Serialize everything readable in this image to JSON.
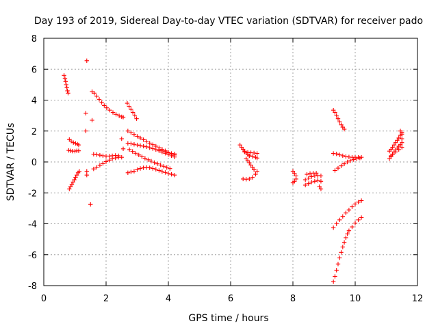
{
  "chart_data": {
    "type": "scatter",
    "title": "Day 193 of 2019, Sidereal Day-to-day VTEC variation (SDTVAR) for receiver pado",
    "xlabel": "GPS time / hours",
    "ylabel": "SDTVAR / TECUs",
    "xlim": [
      0,
      12
    ],
    "ylim": [
      -8,
      8
    ],
    "x_ticks": [
      0,
      2,
      4,
      6,
      8,
      10,
      12
    ],
    "y_ticks": [
      -8,
      -6,
      -4,
      -2,
      0,
      2,
      4,
      6,
      8
    ],
    "x_tick_labels": [
      "0",
      "2",
      "4",
      "6",
      "8",
      "10",
      "12"
    ],
    "y_tick_labels": [
      "-8",
      "-6",
      "-4",
      "-2",
      "0",
      "2",
      "4",
      "6",
      "8"
    ],
    "grid": true,
    "marker": "plus",
    "marker_color": "#ff0000",
    "points": [
      [
        0.65,
        5.6
      ],
      [
        0.68,
        5.4
      ],
      [
        0.7,
        5.2
      ],
      [
        0.72,
        5.0
      ],
      [
        0.74,
        4.8
      ],
      [
        0.76,
        4.6
      ],
      [
        0.78,
        4.45
      ],
      [
        1.38,
        6.55
      ],
      [
        1.35,
        3.15
      ],
      [
        1.35,
        2.0
      ],
      [
        1.55,
        2.7
      ],
      [
        1.5,
        -2.75
      ],
      [
        1.38,
        -0.85
      ],
      [
        1.38,
        -0.6
      ],
      [
        2.5,
        1.5
      ],
      [
        2.55,
        0.85
      ],
      [
        2.55,
        2.9
      ],
      [
        0.82,
        1.45
      ],
      [
        0.88,
        1.35
      ],
      [
        0.95,
        1.25
      ],
      [
        1.02,
        1.2
      ],
      [
        1.08,
        1.15
      ],
      [
        1.12,
        1.1
      ],
      [
        0.8,
        0.75
      ],
      [
        0.86,
        0.72
      ],
      [
        0.92,
        0.7
      ],
      [
        1.0,
        0.7
      ],
      [
        1.06,
        0.72
      ],
      [
        1.12,
        0.72
      ],
      [
        0.82,
        -1.75
      ],
      [
        0.86,
        -1.6
      ],
      [
        0.9,
        -1.45
      ],
      [
        0.94,
        -1.3
      ],
      [
        0.98,
        -1.15
      ],
      [
        1.02,
        -1.0
      ],
      [
        1.06,
        -0.85
      ],
      [
        1.1,
        -0.7
      ],
      [
        1.14,
        -0.6
      ],
      [
        1.55,
        4.55
      ],
      [
        1.62,
        4.45
      ],
      [
        1.7,
        4.25
      ],
      [
        1.78,
        4.05
      ],
      [
        1.86,
        3.85
      ],
      [
        1.94,
        3.65
      ],
      [
        2.02,
        3.5
      ],
      [
        2.12,
        3.35
      ],
      [
        2.22,
        3.2
      ],
      [
        2.32,
        3.08
      ],
      [
        2.42,
        2.98
      ],
      [
        2.5,
        2.92
      ],
      [
        1.6,
        0.5
      ],
      [
        1.7,
        0.48
      ],
      [
        1.8,
        0.44
      ],
      [
        1.9,
        0.4
      ],
      [
        2.0,
        0.38
      ],
      [
        2.1,
        0.38
      ],
      [
        2.2,
        0.4
      ],
      [
        2.3,
        0.42
      ],
      [
        2.4,
        0.4
      ],
      [
        1.6,
        -0.45
      ],
      [
        1.7,
        -0.35
      ],
      [
        1.8,
        -0.22
      ],
      [
        1.9,
        -0.1
      ],
      [
        2.0,
        0.02
      ],
      [
        2.1,
        0.12
      ],
      [
        2.2,
        0.2
      ],
      [
        2.3,
        0.26
      ],
      [
        2.4,
        0.3
      ],
      [
        2.5,
        0.3
      ],
      [
        2.68,
        3.8
      ],
      [
        2.74,
        3.6
      ],
      [
        2.8,
        3.4
      ],
      [
        2.86,
        3.2
      ],
      [
        2.92,
        3.0
      ],
      [
        2.98,
        2.8
      ],
      [
        2.7,
        2.0
      ],
      [
        2.8,
        1.9
      ],
      [
        2.9,
        1.78
      ],
      [
        3.0,
        1.66
      ],
      [
        3.1,
        1.55
      ],
      [
        3.2,
        1.44
      ],
      [
        3.3,
        1.33
      ],
      [
        3.4,
        1.22
      ],
      [
        3.5,
        1.12
      ],
      [
        3.6,
        1.02
      ],
      [
        3.7,
        0.92
      ],
      [
        3.8,
        0.82
      ],
      [
        3.9,
        0.72
      ],
      [
        4.0,
        0.62
      ],
      [
        4.1,
        0.52
      ],
      [
        4.2,
        0.45
      ],
      [
        2.7,
        1.2
      ],
      [
        2.8,
        1.18
      ],
      [
        2.9,
        1.14
      ],
      [
        3.0,
        1.1
      ],
      [
        3.1,
        1.06
      ],
      [
        3.2,
        1.02
      ],
      [
        3.3,
        0.98
      ],
      [
        3.4,
        0.92
      ],
      [
        3.5,
        0.86
      ],
      [
        3.6,
        0.8
      ],
      [
        3.7,
        0.72
      ],
      [
        3.8,
        0.64
      ],
      [
        3.9,
        0.56
      ],
      [
        4.0,
        0.48
      ],
      [
        4.1,
        0.4
      ],
      [
        4.2,
        0.32
      ],
      [
        2.75,
        0.8
      ],
      [
        2.85,
        0.68
      ],
      [
        2.95,
        0.56
      ],
      [
        3.05,
        0.45
      ],
      [
        3.15,
        0.34
      ],
      [
        3.25,
        0.24
      ],
      [
        3.35,
        0.14
      ],
      [
        3.45,
        0.05
      ],
      [
        3.55,
        -0.04
      ],
      [
        3.65,
        -0.12
      ],
      [
        3.75,
        -0.2
      ],
      [
        3.85,
        -0.28
      ],
      [
        3.95,
        -0.36
      ],
      [
        4.05,
        -0.43
      ],
      [
        3.7,
        0.8
      ],
      [
        3.8,
        0.72
      ],
      [
        3.9,
        0.66
      ],
      [
        4.0,
        0.6
      ],
      [
        4.1,
        0.55
      ],
      [
        4.2,
        0.52
      ],
      [
        2.7,
        -0.7
      ],
      [
        2.8,
        -0.65
      ],
      [
        2.9,
        -0.6
      ],
      [
        3.0,
        -0.5
      ],
      [
        3.1,
        -0.42
      ],
      [
        3.2,
        -0.38
      ],
      [
        3.3,
        -0.36
      ],
      [
        3.4,
        -0.38
      ],
      [
        3.5,
        -0.42
      ],
      [
        3.6,
        -0.48
      ],
      [
        3.7,
        -0.55
      ],
      [
        3.8,
        -0.62
      ],
      [
        3.9,
        -0.68
      ],
      [
        4.0,
        -0.74
      ],
      [
        4.1,
        -0.8
      ],
      [
        4.2,
        -0.85
      ],
      [
        6.3,
        1.1
      ],
      [
        6.35,
        0.95
      ],
      [
        6.4,
        0.82
      ],
      [
        6.45,
        0.7
      ],
      [
        6.5,
        0.58
      ],
      [
        6.55,
        0.48
      ],
      [
        6.6,
        0.4
      ],
      [
        6.5,
        0.2
      ],
      [
        6.55,
        0.08
      ],
      [
        6.6,
        -0.05
      ],
      [
        6.65,
        -0.2
      ],
      [
        6.7,
        -0.35
      ],
      [
        6.75,
        -0.5
      ],
      [
        6.45,
        0.65
      ],
      [
        6.55,
        0.62
      ],
      [
        6.65,
        0.6
      ],
      [
        6.75,
        0.58
      ],
      [
        6.85,
        0.55
      ],
      [
        6.6,
        0.4
      ],
      [
        6.7,
        0.35
      ],
      [
        6.8,
        0.3
      ],
      [
        6.85,
        0.25
      ],
      [
        6.4,
        -1.1
      ],
      [
        6.5,
        -1.12
      ],
      [
        6.6,
        -1.1
      ],
      [
        6.7,
        -1.0
      ],
      [
        6.8,
        -0.8
      ],
      [
        6.85,
        -0.6
      ],
      [
        8.0,
        -0.6
      ],
      [
        8.05,
        -0.75
      ],
      [
        8.1,
        -0.9
      ],
      [
        8.1,
        -1.1
      ],
      [
        8.05,
        -1.25
      ],
      [
        8.0,
        -1.35
      ],
      [
        8.4,
        -1.15
      ],
      [
        8.5,
        -1.05
      ],
      [
        8.6,
        -0.95
      ],
      [
        8.7,
        -0.9
      ],
      [
        8.8,
        -0.88
      ],
      [
        8.9,
        -0.9
      ],
      [
        8.4,
        -1.5
      ],
      [
        8.5,
        -1.4
      ],
      [
        8.6,
        -1.3
      ],
      [
        8.7,
        -1.25
      ],
      [
        8.8,
        -1.2
      ],
      [
        8.9,
        -1.25
      ],
      [
        8.45,
        -0.8
      ],
      [
        8.55,
        -0.75
      ],
      [
        8.65,
        -0.72
      ],
      [
        8.75,
        -0.72
      ],
      [
        8.85,
        -1.6
      ],
      [
        8.9,
        -1.75
      ],
      [
        9.3,
        3.35
      ],
      [
        9.35,
        3.2
      ],
      [
        9.4,
        3.0
      ],
      [
        9.45,
        2.8
      ],
      [
        9.5,
        2.6
      ],
      [
        9.55,
        2.4
      ],
      [
        9.6,
        2.25
      ],
      [
        9.65,
        2.12
      ],
      [
        9.3,
        0.55
      ],
      [
        9.4,
        0.52
      ],
      [
        9.5,
        0.46
      ],
      [
        9.6,
        0.4
      ],
      [
        9.7,
        0.35
      ],
      [
        9.8,
        0.32
      ],
      [
        9.9,
        0.3
      ],
      [
        10.0,
        0.3
      ],
      [
        10.1,
        0.3
      ],
      [
        10.2,
        0.3
      ],
      [
        9.35,
        -0.55
      ],
      [
        9.45,
        -0.4
      ],
      [
        9.55,
        -0.25
      ],
      [
        9.65,
        -0.12
      ],
      [
        9.75,
        0.0
      ],
      [
        9.85,
        0.08
      ],
      [
        9.95,
        0.15
      ],
      [
        10.05,
        0.2
      ],
      [
        10.15,
        0.25
      ],
      [
        9.3,
        -4.25
      ],
      [
        9.4,
        -4.0
      ],
      [
        9.5,
        -3.75
      ],
      [
        9.6,
        -3.52
      ],
      [
        9.7,
        -3.3
      ],
      [
        9.8,
        -3.1
      ],
      [
        9.9,
        -2.9
      ],
      [
        10.0,
        -2.72
      ],
      [
        10.1,
        -2.6
      ],
      [
        10.2,
        -2.5
      ],
      [
        9.3,
        -7.75
      ],
      [
        9.35,
        -7.4
      ],
      [
        9.4,
        -7.0
      ],
      [
        9.45,
        -6.6
      ],
      [
        9.5,
        -6.2
      ],
      [
        9.55,
        -5.85
      ],
      [
        9.6,
        -5.5
      ],
      [
        9.65,
        -5.2
      ],
      [
        9.7,
        -4.9
      ],
      [
        9.75,
        -4.65
      ],
      [
        9.8,
        -4.45
      ],
      [
        9.9,
        -4.2
      ],
      [
        10.0,
        -3.95
      ],
      [
        10.1,
        -3.75
      ],
      [
        10.2,
        -3.6
      ],
      [
        11.1,
        0.2
      ],
      [
        11.15,
        0.35
      ],
      [
        11.2,
        0.5
      ],
      [
        11.25,
        0.65
      ],
      [
        11.3,
        0.78
      ],
      [
        11.35,
        0.9
      ],
      [
        11.4,
        1.02
      ],
      [
        11.45,
        1.12
      ],
      [
        11.5,
        1.25
      ],
      [
        11.1,
        0.7
      ],
      [
        11.15,
        0.82
      ],
      [
        11.2,
        0.95
      ],
      [
        11.25,
        1.1
      ],
      [
        11.3,
        1.25
      ],
      [
        11.35,
        1.4
      ],
      [
        11.4,
        1.55
      ],
      [
        11.45,
        1.72
      ],
      [
        11.5,
        1.92
      ],
      [
        11.15,
        0.4
      ],
      [
        11.2,
        0.5
      ],
      [
        11.3,
        0.65
      ],
      [
        11.4,
        0.8
      ],
      [
        11.5,
        0.95
      ],
      [
        11.45,
        2.0
      ],
      [
        11.5,
        1.8
      ],
      [
        11.5,
        1.5
      ]
    ]
  }
}
